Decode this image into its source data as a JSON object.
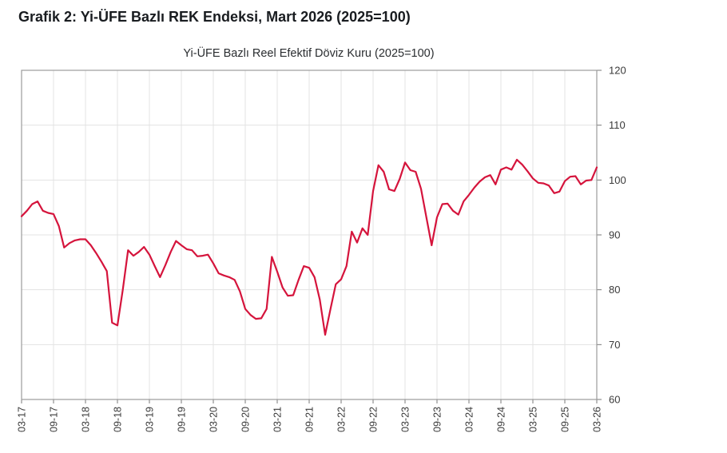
{
  "page": {
    "title": "Grafik 2: Yi-ÜFE Bazlı REK Endeksi, Mart 2026 (2025=100)"
  },
  "chart_data": {
    "type": "line",
    "title": "Yi-ÜFE Bazlı Reel Efektif Döviz Kuru (2025=100)",
    "legend": "none",
    "grid": true,
    "ylim": [
      60,
      120
    ],
    "yticks": [
      60,
      70,
      80,
      90,
      100,
      110,
      120
    ],
    "x_tick_labels": [
      "03-17",
      "09-17",
      "03-18",
      "09-18",
      "03-19",
      "09-19",
      "03-20",
      "09-20",
      "03-21",
      "09-21",
      "03-22",
      "09-22",
      "03-23",
      "09-23",
      "03-24",
      "09-24",
      "03-25",
      "09-25",
      "03-26"
    ],
    "colors": {
      "line": "#d5143c",
      "grid": "#e3e3e3",
      "axis_border": "#9b9b9b",
      "tick": "#7a7a7a",
      "tick_label": "#3a3a3a"
    },
    "series": [
      {
        "name": "Yi-ÜFE Bazlı REK Endeksi",
        "color": "#d5143c",
        "x": [
          "2017-03",
          "2017-04",
          "2017-05",
          "2017-06",
          "2017-07",
          "2017-08",
          "2017-09",
          "2017-10",
          "2017-11",
          "2017-12",
          "2018-01",
          "2018-02",
          "2018-03",
          "2018-04",
          "2018-05",
          "2018-06",
          "2018-07",
          "2018-08",
          "2018-09",
          "2018-10",
          "2018-11",
          "2018-12",
          "2019-01",
          "2019-02",
          "2019-03",
          "2019-04",
          "2019-05",
          "2019-06",
          "2019-07",
          "2019-08",
          "2019-09",
          "2019-10",
          "2019-11",
          "2019-12",
          "2020-01",
          "2020-02",
          "2020-03",
          "2020-04",
          "2020-05",
          "2020-06",
          "2020-07",
          "2020-08",
          "2020-09",
          "2020-10",
          "2020-11",
          "2020-12",
          "2021-01",
          "2021-02",
          "2021-03",
          "2021-04",
          "2021-05",
          "2021-06",
          "2021-07",
          "2021-08",
          "2021-09",
          "2021-10",
          "2021-11",
          "2021-12",
          "2022-01",
          "2022-02",
          "2022-03",
          "2022-04",
          "2022-05",
          "2022-06",
          "2022-07",
          "2022-08",
          "2022-09",
          "2022-10",
          "2022-11",
          "2022-12",
          "2023-01",
          "2023-02",
          "2023-03",
          "2023-04",
          "2023-05",
          "2023-06",
          "2023-07",
          "2023-08",
          "2023-09",
          "2023-10",
          "2023-11",
          "2023-12",
          "2024-01",
          "2024-02",
          "2024-03",
          "2024-04",
          "2024-05",
          "2024-06",
          "2024-07",
          "2024-08",
          "2024-09",
          "2024-10",
          "2024-11",
          "2024-12",
          "2025-01",
          "2025-02",
          "2025-03",
          "2025-04",
          "2025-05",
          "2025-06",
          "2025-07",
          "2025-08",
          "2025-09",
          "2025-10",
          "2025-11",
          "2025-12",
          "2026-01",
          "2026-02",
          "2026-03"
        ],
        "values": [
          93.4,
          94.4,
          95.6,
          96.1,
          94.4,
          94.0,
          93.8,
          91.6,
          87.7,
          88.5,
          89.0,
          89.2,
          89.2,
          88.1,
          86.7,
          85.1,
          83.4,
          74.0,
          73.5,
          80.0,
          87.2,
          86.2,
          86.9,
          87.8,
          86.4,
          84.3,
          82.3,
          84.5,
          86.9,
          88.9,
          88.1,
          87.4,
          87.2,
          86.1,
          86.2,
          86.4,
          84.8,
          83.0,
          82.6,
          82.3,
          81.8,
          79.7,
          76.5,
          75.4,
          74.7,
          74.8,
          76.5,
          86.0,
          83.3,
          80.4,
          78.9,
          79.0,
          81.8,
          84.3,
          84.0,
          82.3,
          78.2,
          71.8,
          76.5,
          81.0,
          81.9,
          84.3,
          90.6,
          88.6,
          91.2,
          90.0,
          98.0,
          102.7,
          101.5,
          98.3,
          98.0,
          100.2,
          103.2,
          101.8,
          101.5,
          98.4,
          93.2,
          88.1,
          93.2,
          95.6,
          95.7,
          94.4,
          93.7,
          96.1,
          97.3,
          98.6,
          99.7,
          100.5,
          100.9,
          99.2,
          101.9,
          102.3,
          101.9,
          103.7,
          102.8,
          101.6,
          100.3,
          99.5,
          99.4,
          99.0,
          97.6,
          97.9,
          99.8,
          100.6,
          100.7,
          99.2,
          99.9,
          100.0,
          102.3
        ]
      }
    ]
  }
}
